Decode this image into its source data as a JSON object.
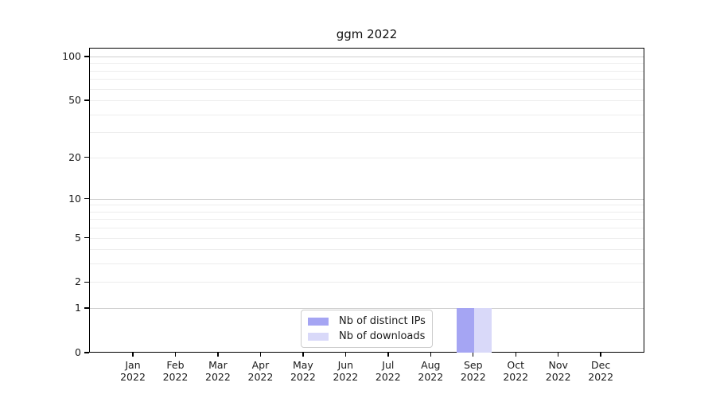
{
  "chart_data": {
    "type": "bar",
    "title": "ggm 2022",
    "categories": [
      "Jan 2022",
      "Feb 2022",
      "Mar 2022",
      "Apr 2022",
      "May 2022",
      "Jun 2022",
      "Jul 2022",
      "Aug 2022",
      "Sep 2022",
      "Oct 2022",
      "Nov 2022",
      "Dec 2022"
    ],
    "series": [
      {
        "name": "Nb of distinct IPs",
        "color": "#a5a5f3",
        "values": [
          0,
          0,
          0,
          0,
          0,
          0,
          0,
          0,
          1,
          0,
          0,
          0
        ]
      },
      {
        "name": "Nb of downloads",
        "color": "#d9d9f9",
        "values": [
          0,
          0,
          0,
          0,
          0,
          0,
          0,
          0,
          1,
          0,
          0,
          0
        ]
      }
    ],
    "xlabel": "",
    "ylabel": "",
    "yscale": "log1p",
    "ylim": [
      0,
      113
    ],
    "yticks": [
      0,
      1,
      2,
      5,
      10,
      20,
      50,
      100
    ],
    "gridlines": {
      "major": [
        1,
        10,
        100
      ],
      "minor": [
        2,
        3,
        4,
        5,
        6,
        7,
        8,
        9,
        20,
        30,
        40,
        50,
        60,
        70,
        80,
        90
      ]
    },
    "grid": true,
    "legend_position": "bottom-center",
    "colors": {
      "major_grid": "#cfcfcf",
      "minor_grid": "#ededed",
      "axis": "#000000",
      "legend_border": "#cccccc",
      "text": "#1a1a1a"
    }
  }
}
